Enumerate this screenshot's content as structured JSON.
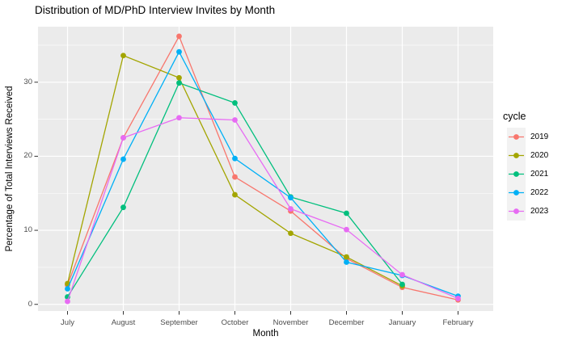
{
  "chart_data": {
    "type": "line",
    "title": "Distribution of MD/PhD Interview Invites by Month",
    "xlabel": "Month",
    "ylabel": "Percentage of Total Interviews Received",
    "legend_title": "cycle",
    "legend_position": "right",
    "categories": [
      "July",
      "August",
      "September",
      "October",
      "November",
      "December",
      "January",
      "February"
    ],
    "y_ticks": [
      0,
      10,
      20,
      30
    ],
    "y_minor_ticks": [
      5,
      15,
      25,
      35
    ],
    "ylim": [
      -0.9,
      37.5
    ],
    "grid": "white major+minor horizontal, white major vertical, gray panel",
    "panel_bg": "#EBEBEB",
    "gridline_color": "#FFFFFF",
    "tick_color": "#333333",
    "tick_label_color": "#4d4d4d",
    "legend_key_bg": "#F2F2F2",
    "series": [
      {
        "name": "2019",
        "color": "#F8766D",
        "values": [
          2.6,
          22.5,
          36.2,
          17.2,
          12.6,
          6.2,
          2.3,
          0.6
        ]
      },
      {
        "name": "2020",
        "color": "#A3A500",
        "values": [
          2.8,
          33.6,
          30.6,
          14.8,
          9.6,
          6.4,
          2.5,
          null
        ]
      },
      {
        "name": "2021",
        "color": "#00BF7D",
        "values": [
          1.0,
          13.1,
          29.9,
          27.2,
          14.5,
          12.3,
          2.7,
          null
        ]
      },
      {
        "name": "2022",
        "color": "#00B0F6",
        "values": [
          2.1,
          19.6,
          34.1,
          19.7,
          14.4,
          5.7,
          3.9,
          1.1
        ]
      },
      {
        "name": "2023",
        "color": "#E76BF3",
        "values": [
          0.4,
          22.5,
          25.2,
          24.9,
          12.9,
          10.1,
          4.0,
          0.8
        ]
      }
    ]
  }
}
